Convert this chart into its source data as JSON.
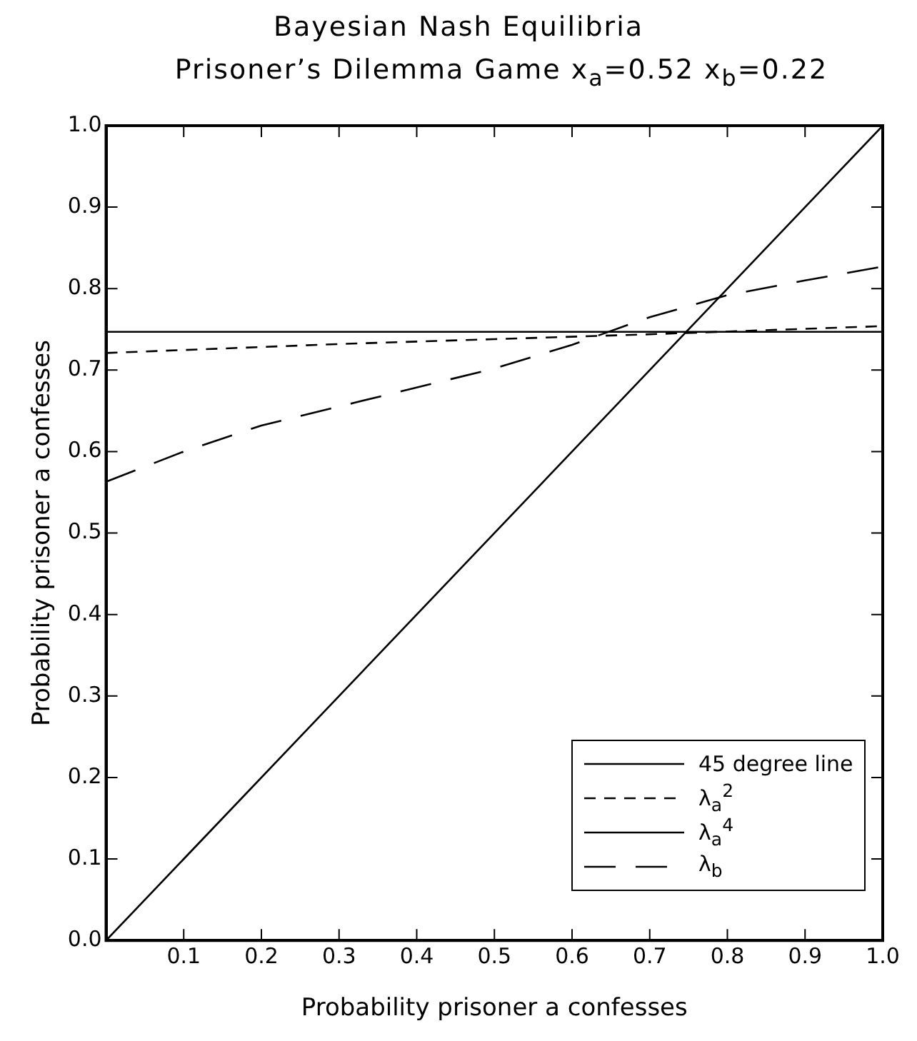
{
  "chart_data": {
    "type": "line",
    "title": "Bayesian Nash Equilibria",
    "subtitle": "Prisoner’s Dilemma Game x$_{a}$=0.52 x$_{b}$=0.22",
    "xlabel": "Probability prisoner a confesses",
    "ylabel": "Probability prisoner a confesses",
    "xlim": [
      0,
      1
    ],
    "ylim": [
      0,
      1
    ],
    "xticks": [
      0.1,
      0.2,
      0.3,
      0.4,
      0.5,
      0.6,
      0.7,
      0.8,
      0.9,
      {
        "value": 1,
        "label": "1.0"
      }
    ],
    "yticks": [
      {
        "value": 0,
        "label": "0.0"
      },
      0.1,
      0.2,
      0.3,
      0.4,
      0.5,
      0.6,
      0.7,
      0.8,
      0.9,
      {
        "value": 1,
        "label": "1.0"
      }
    ],
    "grid": false,
    "legend": "bottom right",
    "marker": "none",
    "series": [
      {
        "name": "45 degree line",
        "color": "#000000",
        "line_style": "solid",
        "x": [
          0,
          1
        ],
        "values": [
          0,
          1
        ]
      },
      {
        "name": "λ$_{a}$$^{2}$",
        "color": "#000000",
        "line_style": "dashed",
        "x": [
          0,
          0.3,
          0.5,
          0.7,
          1
        ],
        "values": [
          0.721,
          0.732,
          0.738,
          0.744,
          0.754
        ]
      },
      {
        "name": "λ$_{a}$$^{4}$",
        "color": "#000000",
        "line_style": "solid",
        "x": [
          0,
          1
        ],
        "values": [
          0.747,
          0.747
        ]
      },
      {
        "name": "λ$_{b}$",
        "color": "#000000",
        "line_style": "longdash",
        "x": [
          0,
          0.1,
          0.2,
          0.32,
          0.5,
          0.6,
          0.7,
          0.8,
          0.9,
          1
        ],
        "values": [
          0.563,
          0.6,
          0.632,
          0.66,
          0.702,
          0.731,
          0.765,
          0.792,
          0.81,
          0.827
        ]
      }
    ]
  }
}
